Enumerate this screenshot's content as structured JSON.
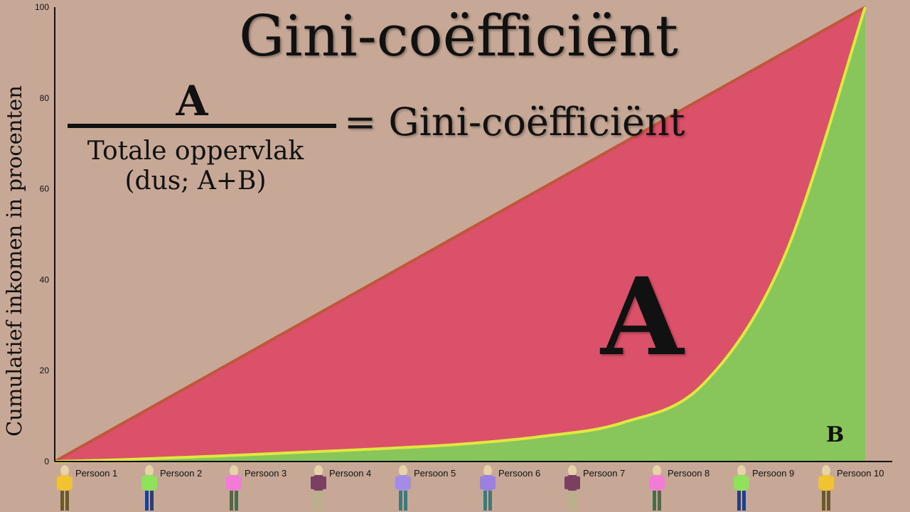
{
  "title": "Gini-coëfficiënt",
  "formula": {
    "numerator": "A",
    "denominator_line1": "Totale oppervlak",
    "denominator_line2": "(dus; A+B)",
    "result": "= Gini-coëfficiënt"
  },
  "area_labels": {
    "a": "A",
    "b": "B"
  },
  "colors": {
    "background": "#c7a896",
    "area_a": "#db5169",
    "area_b": "#88c55a",
    "equality_line": "#c0563c",
    "lorenz_curve": "#e0e840"
  },
  "people": [
    {
      "label": "Persoon 1",
      "shirt": "#f1c232",
      "pants": "#6b5a2a"
    },
    {
      "label": "Persoon 2",
      "shirt": "#8fe35a",
      "pants": "#1f3f8a"
    },
    {
      "label": "Persoon 3",
      "shirt": "#f27bd6",
      "pants": "#4d6a4a"
    },
    {
      "label": "Persoon 4",
      "shirt": "#7b3f62",
      "pants": "#b7b28a"
    },
    {
      "label": "Persoon 5",
      "shirt": "#a48ce6",
      "pants": "#3d7a7a"
    },
    {
      "label": "Persoon 6",
      "shirt": "#9a80e0",
      "pants": "#3d7a7a"
    },
    {
      "label": "Persoon 7",
      "shirt": "#7b3f62",
      "pants": "#b7b28a"
    },
    {
      "label": "Persoon 8",
      "shirt": "#f27bd6",
      "pants": "#4d6a4a"
    },
    {
      "label": "Persoon 9",
      "shirt": "#8fe35a",
      "pants": "#1f3f8a"
    },
    {
      "label": "Persoon 10",
      "shirt": "#f1c232",
      "pants": "#6b5a2a"
    }
  ],
  "chart_data": {
    "type": "area",
    "ylabel": "Cumulatief inkomen in procenten",
    "ylim": [
      0,
      100
    ],
    "yticks": [
      0,
      20,
      40,
      60,
      80,
      100
    ],
    "x": [
      0,
      1,
      2,
      3,
      4,
      5,
      6,
      7,
      8,
      9,
      10
    ],
    "series": [
      {
        "values": [
          0,
          10,
          20,
          30,
          40,
          50,
          60,
          70,
          80,
          90,
          100
        ]
      },
      {
        "values": [
          0,
          0.5,
          1.2,
          2.0,
          2.8,
          3.8,
          5.5,
          8.5,
          17,
          45,
          100
        ]
      }
    ],
    "grid": false
  }
}
